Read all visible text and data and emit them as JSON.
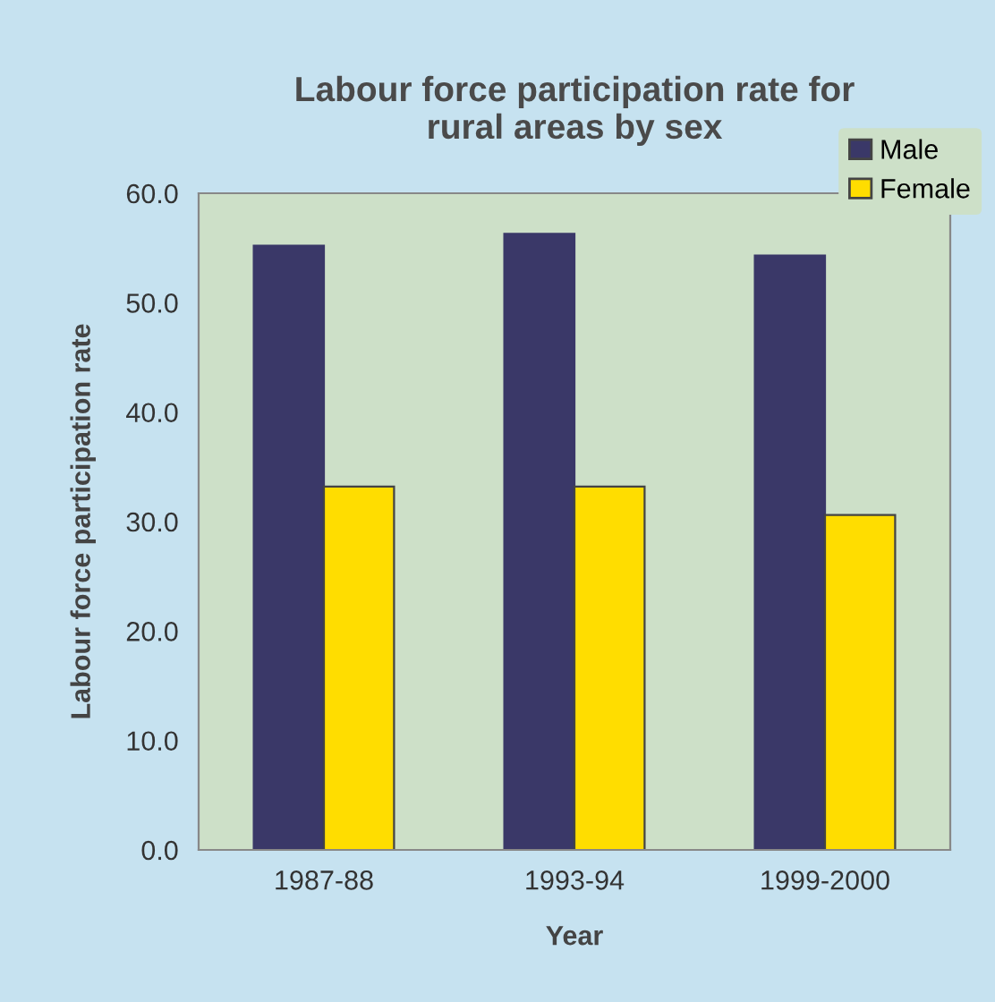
{
  "chart_data": {
    "type": "bar",
    "title": "Labour force participation rate for\nrural areas by sex",
    "xlabel": "Year",
    "ylabel": "Labour force participation rate",
    "categories": [
      "1987-88",
      "1993-94",
      "1999-2000"
    ],
    "series": [
      {
        "name": "Male",
        "color": "#3a3868",
        "values": [
          55.2,
          56.3,
          54.3
        ]
      },
      {
        "name": "Female",
        "color": "#ffdd00",
        "values": [
          33.2,
          33.2,
          30.6
        ]
      }
    ],
    "ylim": [
      0,
      60
    ],
    "yticks": [
      {
        "value": 0,
        "label": "0.0"
      },
      {
        "value": 10,
        "label": "10.0"
      },
      {
        "value": 20,
        "label": "20.0"
      },
      {
        "value": 30,
        "label": "30.0"
      },
      {
        "value": 40,
        "label": "40.0"
      },
      {
        "value": 50,
        "label": "50.0"
      },
      {
        "value": 60,
        "label": "60.0"
      }
    ],
    "grid": false,
    "legend": "top right"
  }
}
